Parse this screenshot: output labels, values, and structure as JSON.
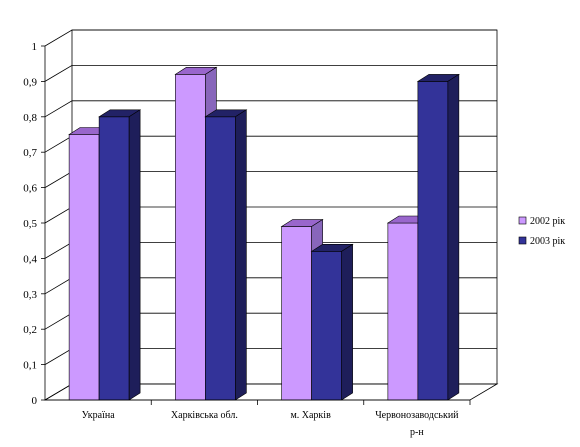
{
  "chart_data": {
    "type": "bar",
    "title": "",
    "xlabel": "",
    "ylabel": "",
    "categories": [
      [
        "Україна"
      ],
      [
        "Харківська обл."
      ],
      [
        "м. Харків"
      ],
      [
        "Червонозаводський",
        "р-н"
      ]
    ],
    "series": [
      {
        "name": "2002 рік",
        "values": [
          0.75,
          0.92,
          0.49,
          0.5
        ],
        "color": "#CC99FF",
        "top": "#9966CC",
        "side": "#8866BB"
      },
      {
        "name": "2003 рік",
        "values": [
          0.8,
          0.8,
          0.42,
          0.9
        ],
        "color": "#333399",
        "top": "#222266",
        "side": "#1E1E5A"
      }
    ],
    "ylim": [
      0,
      1
    ],
    "yticks": [
      "0",
      "0,1",
      "0,2",
      "0,3",
      "0,4",
      "0,5",
      "0,6",
      "0,7",
      "0,8",
      "0,9",
      "1"
    ],
    "grid": true,
    "legend_position": "right",
    "three_d": true
  }
}
